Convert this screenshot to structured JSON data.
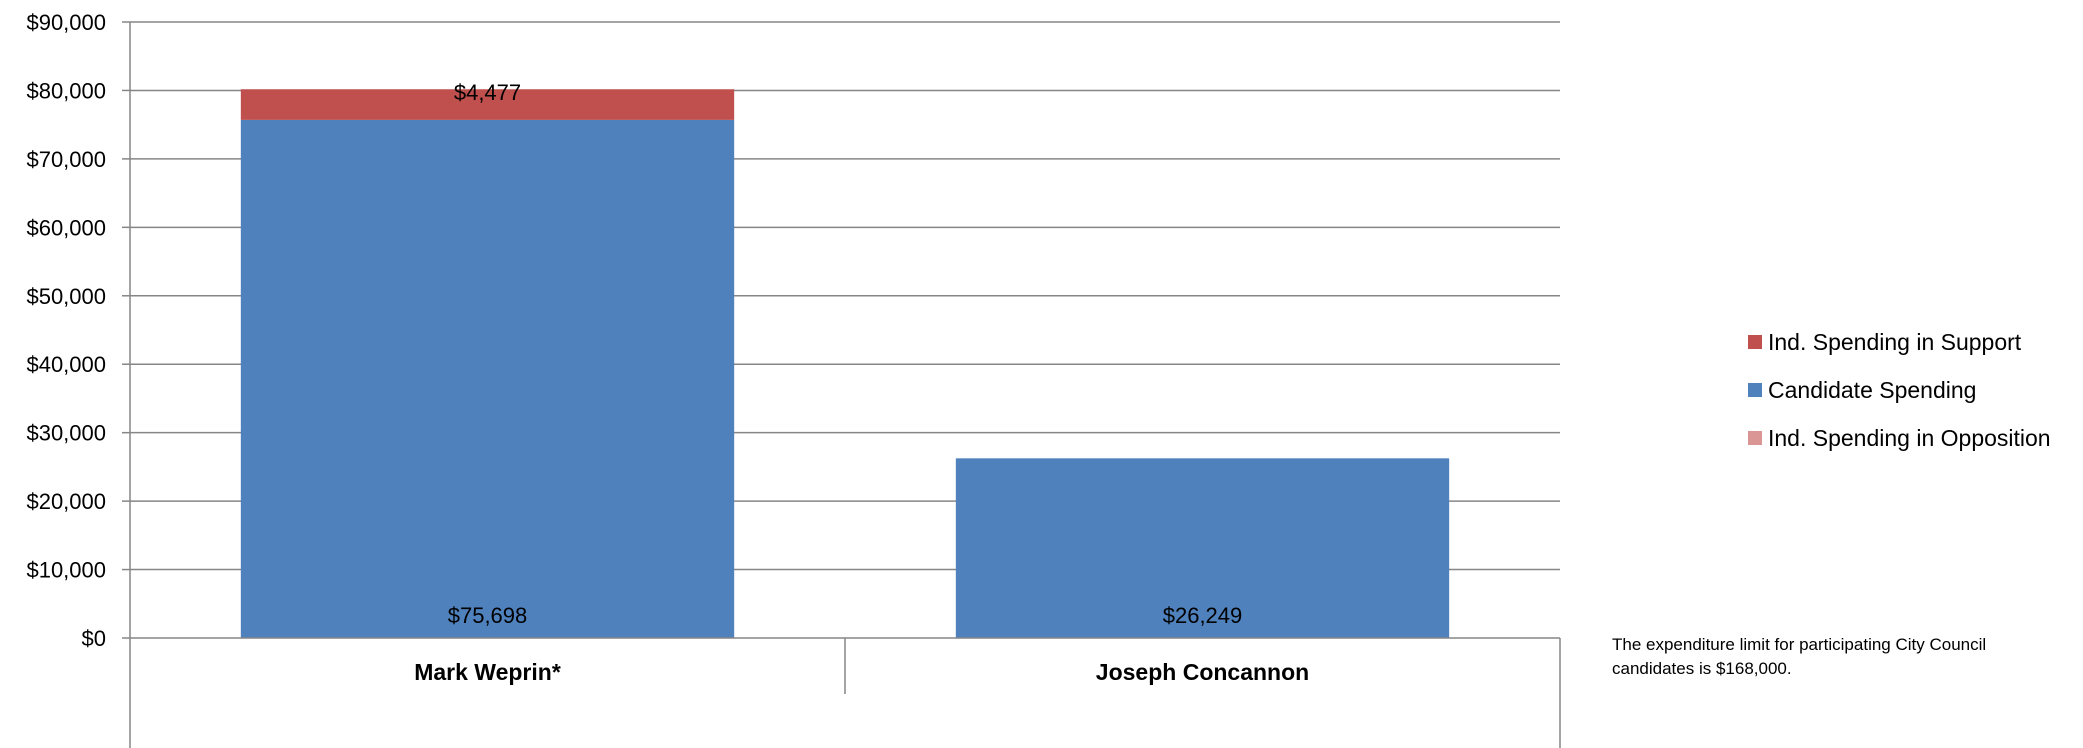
{
  "chart_data": {
    "type": "bar",
    "stacked": true,
    "title": "",
    "xlabel": "",
    "ylabel": "",
    "ylim": [
      0,
      90000
    ],
    "ytick_step": 10000,
    "yticks": [
      "$0",
      "$10,000",
      "$20,000",
      "$30,000",
      "$40,000",
      "$50,000",
      "$60,000",
      "$70,000",
      "$80,000",
      "$90,000"
    ],
    "grid": true,
    "legend_position": "right",
    "categories": [
      "Mark Weprin*",
      "Joseph Concannon"
    ],
    "series": [
      {
        "name": "Candidate Spending",
        "color": "#4f81bd",
        "values": [
          75698,
          26249
        ],
        "labels": [
          "$75,698",
          "$26,249"
        ]
      },
      {
        "name": "Ind. Spending in Support",
        "color": "#c0504d",
        "values": [
          4477,
          0
        ],
        "labels": [
          "$4,477",
          ""
        ]
      },
      {
        "name": "Ind. Spending in Opposition",
        "color": "#d99694",
        "values": [
          0,
          0
        ],
        "labels": [
          "",
          ""
        ]
      }
    ]
  },
  "legend": [
    {
      "label": "Ind. Spending in Support",
      "color": "#c0504d"
    },
    {
      "label": "Candidate Spending",
      "color": "#4f81bd"
    },
    {
      "label": "Ind. Spending in Opposition",
      "color": "#d99694"
    }
  ],
  "note": "The expenditure limit for participating City Council candidates is $168,000."
}
